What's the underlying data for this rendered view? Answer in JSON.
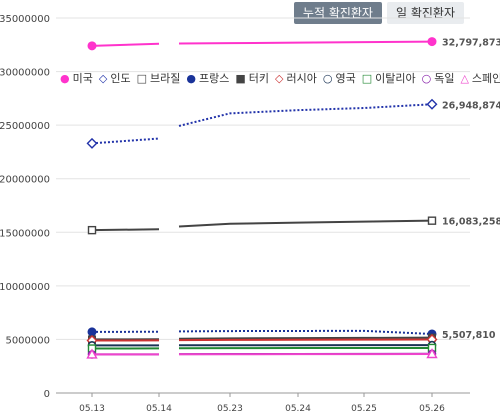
{
  "tabs": [
    {
      "label": "누적 확진환자",
      "active": true
    },
    {
      "label": "일 확진환자",
      "active": false
    }
  ],
  "chart_data": {
    "type": "line",
    "categories": [
      "05.13",
      "05.14",
      "05.23",
      "05.24",
      "05.25",
      "05.26"
    ],
    "ylim": [
      0,
      35000000
    ],
    "yticks": [
      "0",
      "5000000",
      "10000000",
      "15000000",
      "20000000",
      "25000000",
      "30000000",
      "35000000"
    ],
    "grid": true,
    "legend_position": "top-left",
    "series": [
      {
        "name": "미국",
        "color": "#ff33cc",
        "marker": "circle-filled",
        "values": [
          32400000,
          32600000,
          32650000,
          32700000,
          32750000,
          32797873
        ],
        "end_label": "32,797,873"
      },
      {
        "name": "인도",
        "color": "#2233aa",
        "marker": "diamond-open",
        "values": [
          23300000,
          23750000,
          26100000,
          26400000,
          26600000,
          26948874
        ],
        "end_label": "26,948,874"
      },
      {
        "name": "브라질",
        "color": "#444444",
        "marker": "square-open",
        "values": [
          15200000,
          15280000,
          15800000,
          15900000,
          16000000,
          16083258
        ],
        "end_label": "16,083,258"
      },
      {
        "name": "프랑스",
        "color": "#1a3399",
        "marker": "circle-filled",
        "values": [
          5700000,
          5720000,
          5780000,
          5790000,
          5800000,
          5507810
        ],
        "end_label": "5,507,810"
      },
      {
        "name": "터키",
        "color": "#444444",
        "marker": "square-filled",
        "values": [
          5000000,
          5020000,
          5100000,
          5120000,
          5140000,
          5165000
        ]
      },
      {
        "name": "러시아",
        "color": "#cc3333",
        "marker": "diamond-open",
        "values": [
          4900000,
          4910000,
          4960000,
          4970000,
          4980000,
          4995000
        ]
      },
      {
        "name": "영국",
        "color": "#1a3355",
        "marker": "circle-open",
        "values": [
          4450000,
          4450000,
          4460000,
          4460000,
          4465000,
          4470000
        ]
      },
      {
        "name": "이탈리아",
        "color": "#228833",
        "marker": "square-open",
        "values": [
          4150000,
          4160000,
          4190000,
          4195000,
          4200000,
          4205000
        ]
      },
      {
        "name": "독일",
        "color": "#8822aa",
        "marker": "circle-open",
        "values": [
          3600000,
          3610000,
          3640000,
          3645000,
          3650000,
          3662538
        ]
      },
      {
        "name": "스페인",
        "color": "#ee44cc",
        "marker": "triangle-open",
        "values": [
          3600000,
          3605000,
          3620000,
          3625000,
          3630000,
          3640000
        ]
      }
    ]
  }
}
